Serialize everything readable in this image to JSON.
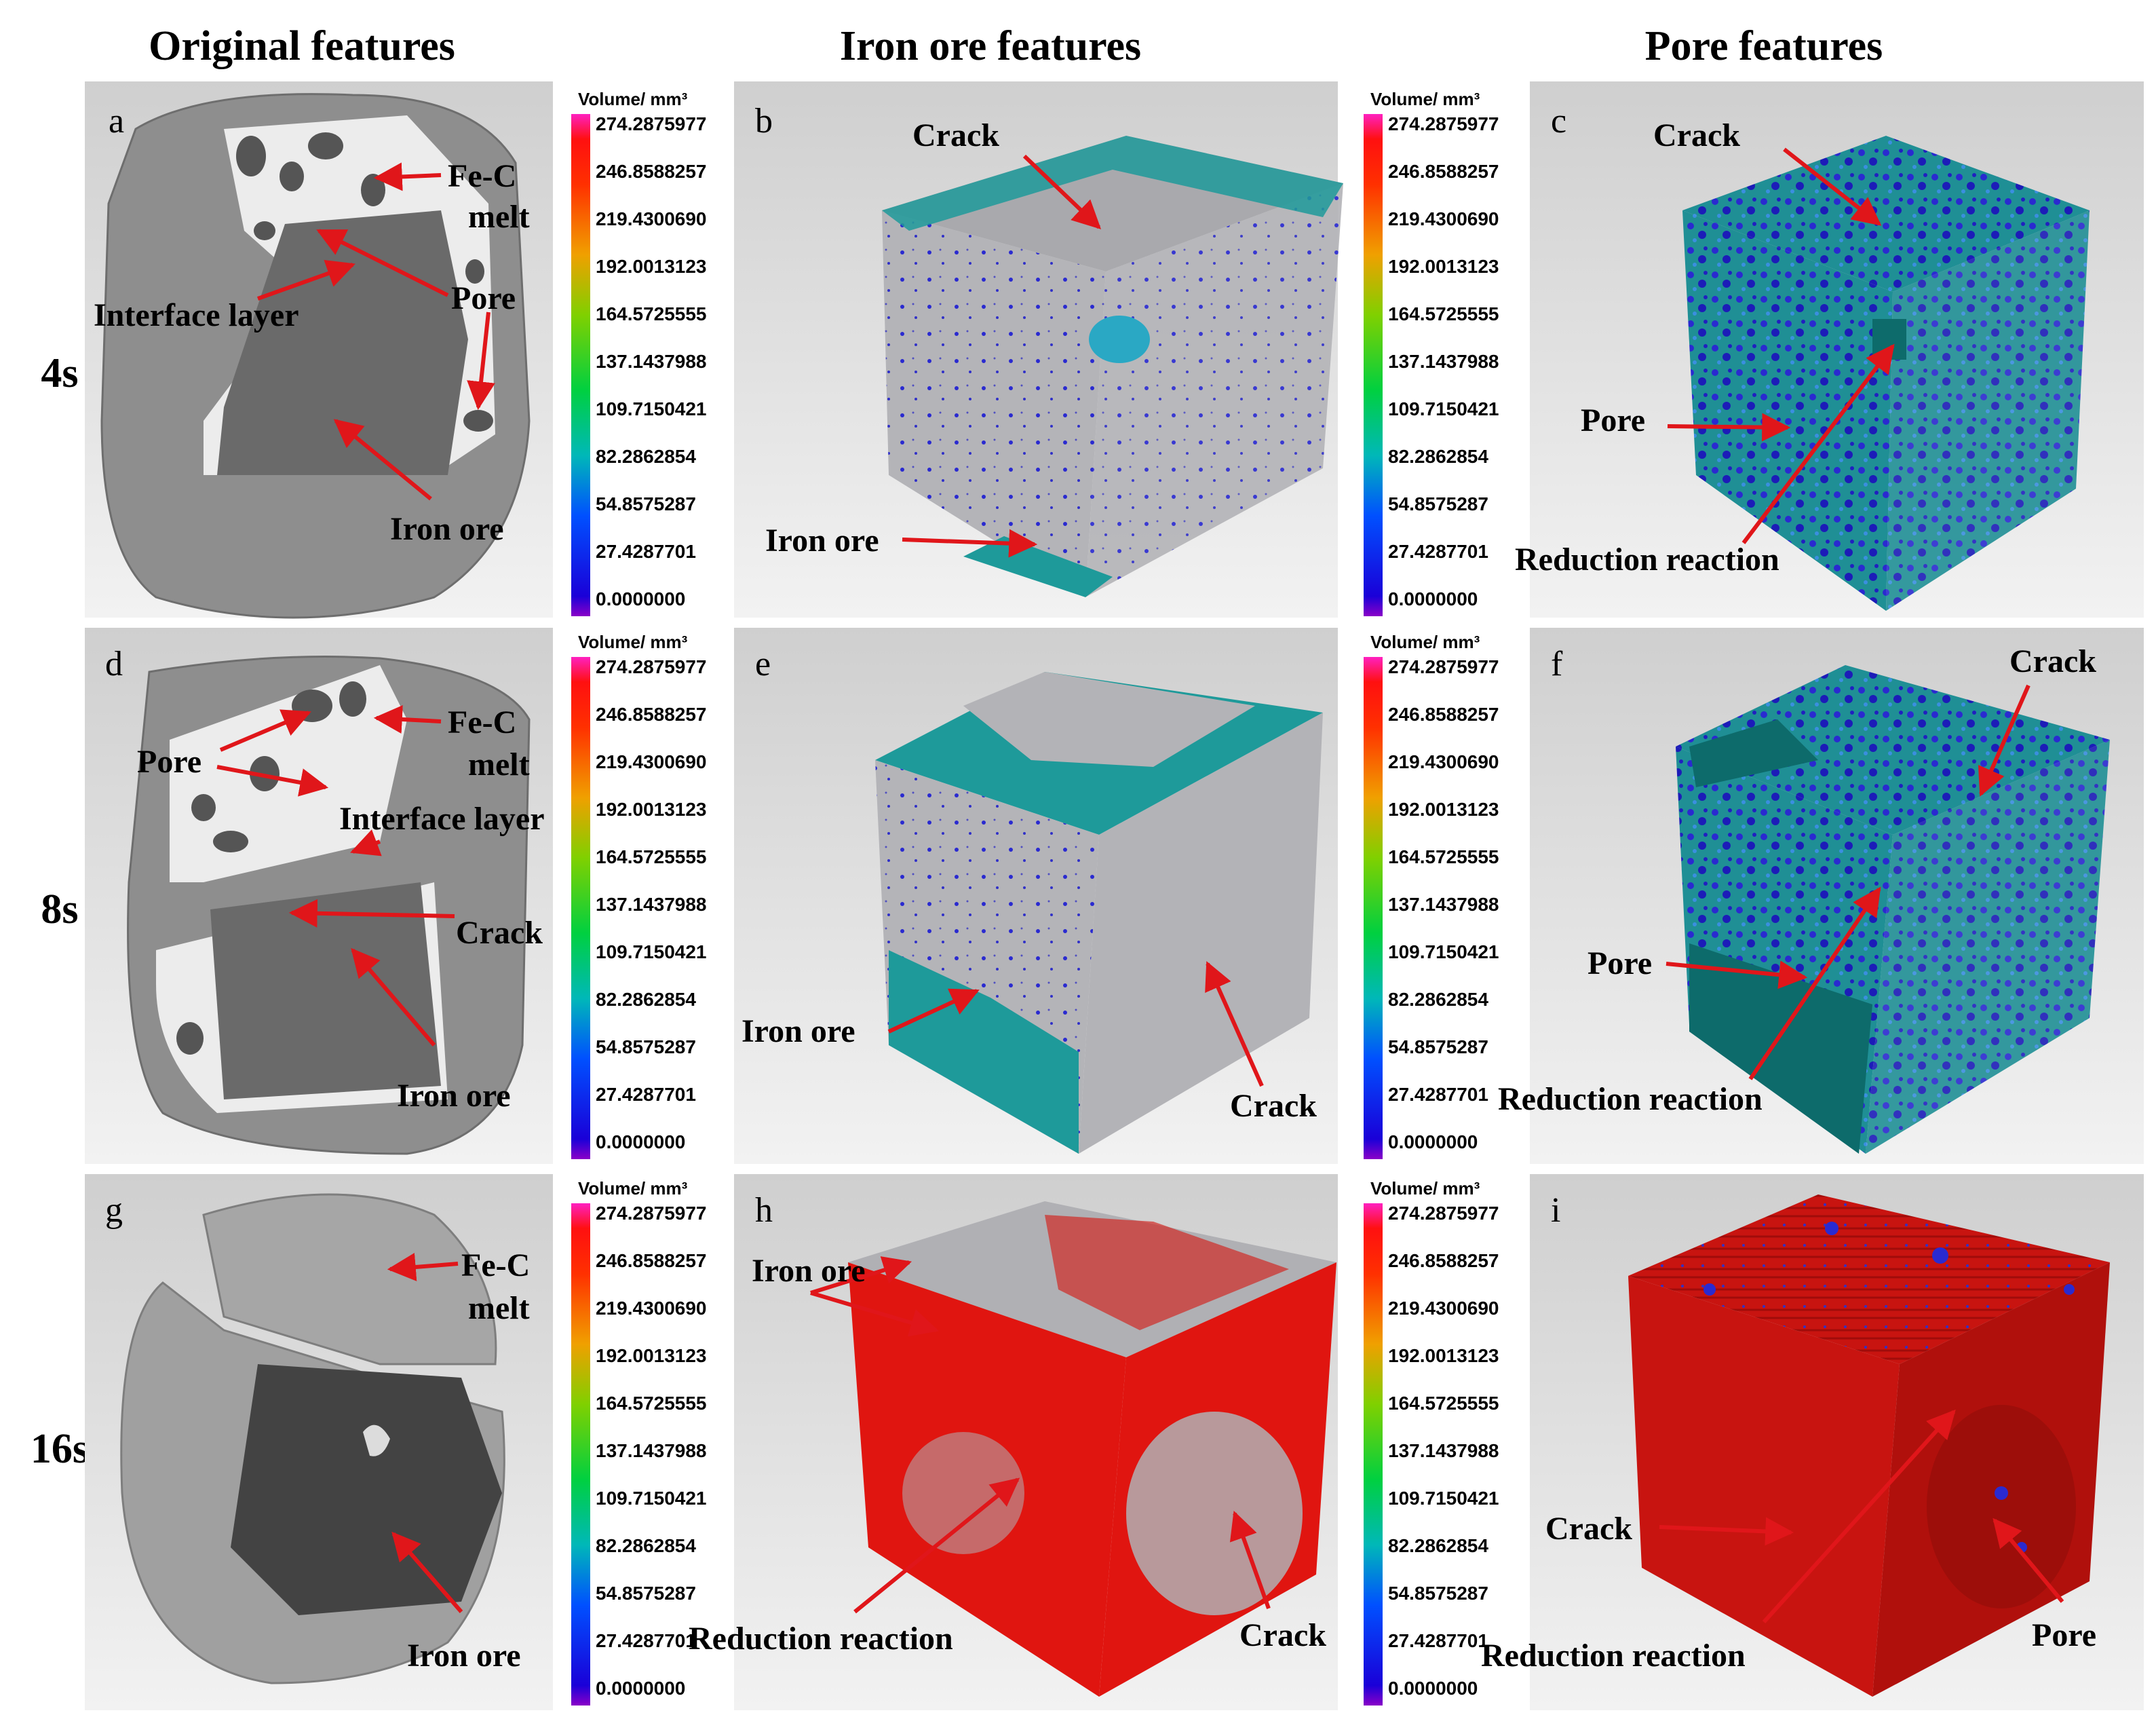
{
  "column_headers": [
    "Original features",
    "Iron ore features",
    "Pore features"
  ],
  "row_labels": [
    "4s",
    "8s",
    "16s"
  ],
  "panel_letters": [
    "a",
    "b",
    "c",
    "d",
    "e",
    "f",
    "g",
    "h",
    "i"
  ],
  "colorbar": {
    "title": "Volume/ mm³",
    "ticks": [
      "274.2875977",
      "246.8588257",
      "219.4300690",
      "192.0013123",
      "164.5725555",
      "137.1437988",
      "109.7150421",
      "82.2862854",
      "54.8575287",
      "27.4287701",
      "0.0000000"
    ]
  },
  "annotations": {
    "a": [
      "Fe-C",
      "melt",
      "Pore",
      "Interface layer",
      "Iron ore"
    ],
    "b": [
      "Crack",
      "Iron ore"
    ],
    "c": [
      "Crack",
      "Pore",
      "Reduction reaction"
    ],
    "d": [
      "Fe-C",
      "melt",
      "Pore",
      "Interface layer",
      "Crack",
      "Iron ore"
    ],
    "e": [
      "Iron ore",
      "Crack"
    ],
    "f": [
      "Crack",
      "Pore",
      "Reduction reaction"
    ],
    "g": [
      "Fe-C",
      "melt",
      "Iron ore"
    ],
    "h": [
      "Iron ore",
      "Reduction reaction",
      "Crack"
    ],
    "i": [
      "Crack",
      "Reduction reaction",
      "Pore"
    ]
  },
  "colors": {
    "arrow": "#e0161a",
    "teal": "#1e9a9a",
    "pore_blue": "#2424c8",
    "reduction_red": "#e01510"
  }
}
